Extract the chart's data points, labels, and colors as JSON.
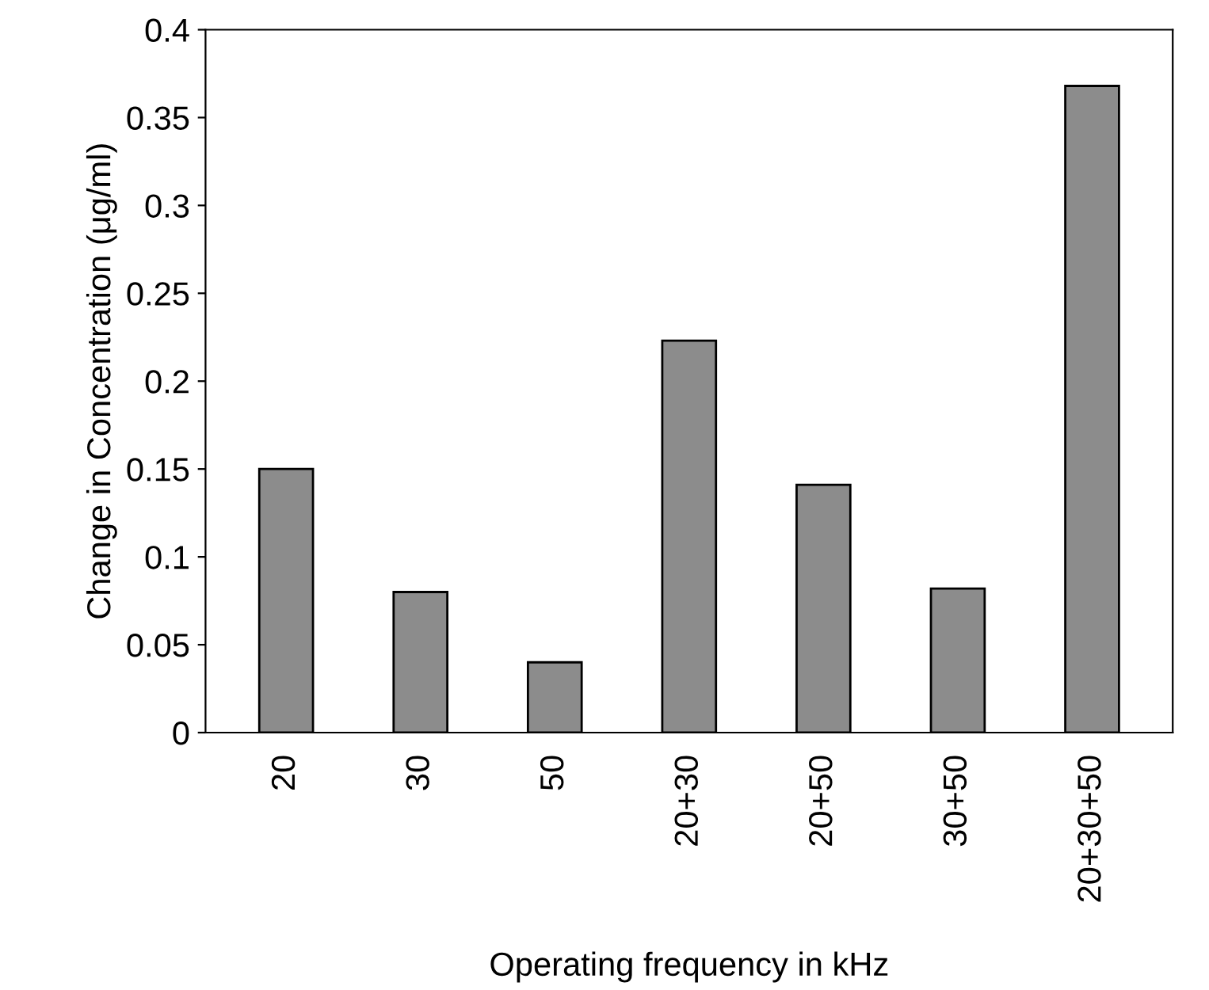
{
  "chart_data": {
    "type": "bar",
    "xlabel": "Operating frequency in kHz",
    "ylabel": "Change in Concentration (μg/ml)",
    "categories": [
      "20",
      "30",
      "50",
      "20+30",
      "20+50",
      "30+50",
      "20+30+50"
    ],
    "values": [
      0.15,
      0.08,
      0.04,
      0.223,
      0.141,
      0.082,
      0.368
    ],
    "color": "#8c8c8c",
    "ylim": [
      0,
      0.4
    ],
    "yticks": [
      0,
      0.05,
      0.1,
      0.15,
      0.2,
      0.25,
      0.3,
      0.35,
      0.4
    ],
    "grid": false
  }
}
